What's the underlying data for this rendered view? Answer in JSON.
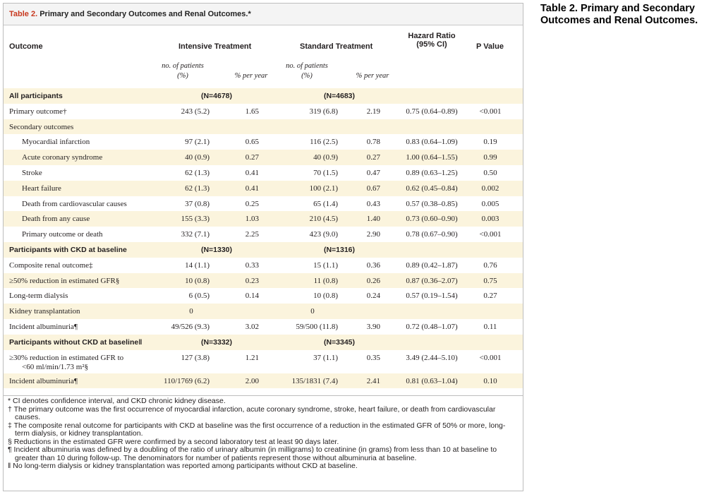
{
  "side_title": "Table 2. Primary and Secondary Outcomes and Renal Outcomes.",
  "caption": {
    "label": "Table 2.",
    "text": " Primary and Secondary Outcomes and Renal Outcomes.*"
  },
  "columns": {
    "outcome": "Outcome",
    "intensive": "Intensive Treatment",
    "standard": "Standard Treatment",
    "hr_line1": "Hazard Ratio",
    "hr_line2": "(95% CI)",
    "pvalue": "P Value",
    "sub_patients_line1": "no. of patients",
    "sub_patients_line2": "(%)",
    "sub_per_year": "% per year"
  },
  "rows": [
    {
      "type": "group",
      "label": "All participants",
      "n_int": "(N=4678)",
      "n_std": "(N=4683)",
      "shaded": true
    },
    {
      "type": "data",
      "label": "Primary outcome†",
      "indent": false,
      "int_n": "243 (5.2)",
      "int_py": "1.65",
      "std_n": "319 (6.8)",
      "std_py": "2.19",
      "hr": "0.75 (0.64–0.89)",
      "p": "<0.001",
      "shaded": false
    },
    {
      "type": "data",
      "label": "Secondary outcomes",
      "indent": false,
      "int_n": "",
      "int_py": "",
      "std_n": "",
      "std_py": "",
      "hr": "",
      "p": "",
      "shaded": true
    },
    {
      "type": "data",
      "label": "Myocardial infarction",
      "indent": true,
      "int_n": "97 (2.1)",
      "int_py": "0.65",
      "std_n": "116 (2.5)",
      "std_py": "0.78",
      "hr": "0.83 (0.64–1.09)",
      "p": "0.19",
      "shaded": false
    },
    {
      "type": "data",
      "label": "Acute coronary syndrome",
      "indent": true,
      "int_n": "40 (0.9)",
      "int_py": "0.27",
      "std_n": "40 (0.9)",
      "std_py": "0.27",
      "hr": "1.00 (0.64–1.55)",
      "p": "0.99",
      "shaded": true
    },
    {
      "type": "data",
      "label": "Stroke",
      "indent": true,
      "int_n": "62 (1.3)",
      "int_py": "0.41",
      "std_n": "70 (1.5)",
      "std_py": "0.47",
      "hr": "0.89 (0.63–1.25)",
      "p": "0.50",
      "shaded": false
    },
    {
      "type": "data",
      "label": "Heart failure",
      "indent": true,
      "int_n": "62 (1.3)",
      "int_py": "0.41",
      "std_n": "100 (2.1)",
      "std_py": "0.67",
      "hr": "0.62 (0.45–0.84)",
      "p": "0.002",
      "shaded": true
    },
    {
      "type": "data",
      "label": "Death from cardiovascular causes",
      "indent": true,
      "int_n": "37 (0.8)",
      "int_py": "0.25",
      "std_n": "65 (1.4)",
      "std_py": "0.43",
      "hr": "0.57 (0.38–0.85)",
      "p": "0.005",
      "shaded": false
    },
    {
      "type": "data",
      "label": "Death from any cause",
      "indent": true,
      "int_n": "155 (3.3)",
      "int_py": "1.03",
      "std_n": "210 (4.5)",
      "std_py": "1.40",
      "hr": "0.73 (0.60–0.90)",
      "p": "0.003",
      "shaded": true
    },
    {
      "type": "data",
      "label": "Primary outcome or death",
      "indent": true,
      "int_n": "332 (7.1)",
      "int_py": "2.25",
      "std_n": "423 (9.0)",
      "std_py": "2.90",
      "hr": "0.78 (0.67–0.90)",
      "p": "<0.001",
      "shaded": false
    },
    {
      "type": "group",
      "label": "Participants with CKD at baseline",
      "n_int": "(N=1330)",
      "n_std": "(N=1316)",
      "shaded": true
    },
    {
      "type": "data",
      "label": "Composite renal outcome‡",
      "indent": false,
      "int_n": "14 (1.1)",
      "int_py": "0.33",
      "std_n": "15 (1.1)",
      "std_py": "0.36",
      "hr": "0.89 (0.42–1.87)",
      "p": "0.76",
      "shaded": false
    },
    {
      "type": "data",
      "label": "≥50% reduction in estimated GFR§",
      "indent": false,
      "int_n": "10 (0.8)",
      "int_py": "0.23",
      "std_n": "11 (0.8)",
      "std_py": "0.26",
      "hr": "0.87 (0.36–2.07)",
      "p": "0.75",
      "shaded": true
    },
    {
      "type": "data",
      "label": "Long-term dialysis",
      "indent": false,
      "int_n": "6 (0.5)",
      "int_py": "0.14",
      "std_n": "10 (0.8)",
      "std_py": "0.24",
      "hr": "0.57 (0.19–1.54)",
      "p": "0.27",
      "shaded": false
    },
    {
      "type": "data",
      "label": "Kidney transplantation",
      "indent": false,
      "int_n": "0",
      "int_py": "",
      "std_n": "0",
      "std_py": "",
      "hr": "",
      "p": "",
      "shaded": true,
      "center_n": true
    },
    {
      "type": "data",
      "label": "Incident albuminuria¶",
      "indent": false,
      "int_n": "49/526 (9.3)",
      "int_py": "3.02",
      "std_n": "59/500 (11.8)",
      "std_py": "3.90",
      "hr": "0.72 (0.48–1.07)",
      "p": "0.11",
      "shaded": false
    },
    {
      "type": "group",
      "label": "Participants without CKD at baseline‖",
      "n_int": "(N=3332)",
      "n_std": "(N=3345)",
      "shaded": true
    },
    {
      "type": "data2",
      "label": "≥30% reduction in estimated GFR to",
      "label2": "<60 ml/min/1.73 m²§",
      "indent": false,
      "int_n": "127 (3.8)",
      "int_py": "1.21",
      "std_n": "37 (1.1)",
      "std_py": "0.35",
      "hr": "3.49 (2.44–5.10)",
      "p": "<0.001",
      "shaded": false
    },
    {
      "type": "data",
      "label": "Incident albuminuria¶",
      "indent": false,
      "int_n": "110/1769 (6.2)",
      "int_py": "2.00",
      "std_n": "135/1831 (7.4)",
      "std_py": "2.41",
      "hr": "0.81 (0.63–1.04)",
      "p": "0.10",
      "shaded": true
    }
  ],
  "footnotes": [
    "* CI denotes confidence interval, and CKD chronic kidney disease.",
    "† The primary outcome was the first occurrence of myocardial infarction, acute coronary syndrome, stroke, heart failure, or death from cardiovascular causes.",
    "‡ The composite renal outcome for participants with CKD at baseline was the first occurrence of a reduction in the estimated GFR of 50% or more, long-term dialysis, or kidney transplantation.",
    "§ Reductions in the estimated GFR were confirmed by a second laboratory test at least 90 days later.",
    "¶ Incident albuminuria was defined by a doubling of the ratio of urinary albumin (in milligrams) to creatinine (in grams) from less than 10 at baseline to greater than 10 during follow-up. The denominators for number of patients represent those without albuminuria at baseline.",
    "‖ No long-term dialysis or kidney transplantation was reported among participants without CKD at baseline."
  ]
}
